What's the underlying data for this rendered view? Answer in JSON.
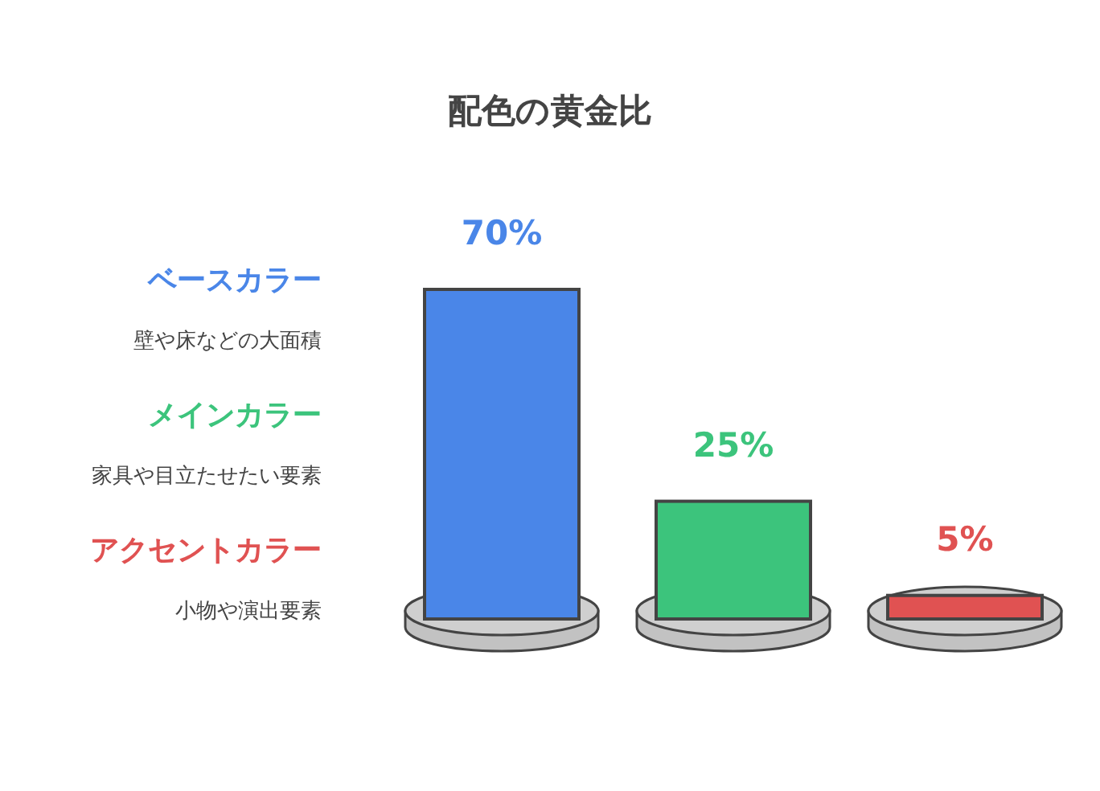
{
  "chart_data": {
    "type": "bar",
    "title": "配色の黄金比",
    "categories": [
      null,
      null,
      null
    ],
    "values": [
      70,
      25,
      5
    ],
    "colors": [
      "#4a86e8",
      "#3cc47c",
      "#e05252"
    ],
    "value_labels": [
      "70%",
      "25%",
      "5%"
    ],
    "annotations": [
      "ベースカラー",
      "壁や床などの大面積",
      "メインカラー",
      "家具や目立たせたい要素",
      "アクセントカラー",
      "小物や演出要素"
    ]
  }
}
